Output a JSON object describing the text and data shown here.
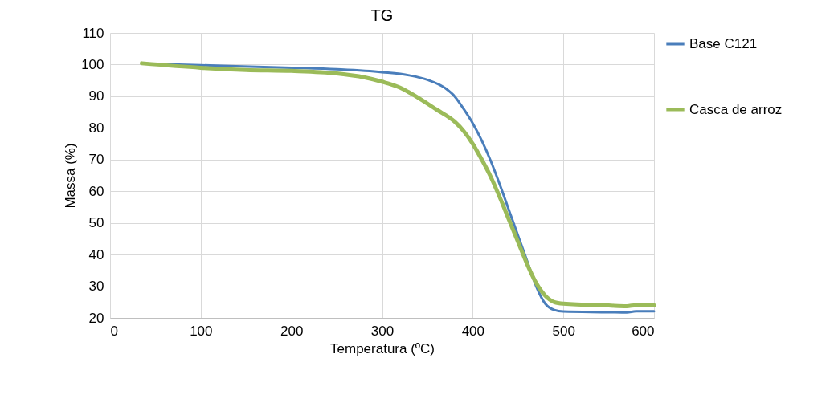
{
  "chart_data": {
    "type": "line",
    "title": "TG",
    "xlabel": "Temperatura (ºC)",
    "ylabel": "Massa (%)",
    "xlim": [
      0,
      600
    ],
    "xticks": [
      0,
      100,
      200,
      300,
      400,
      500,
      600
    ],
    "ylim": [
      20,
      110
    ],
    "yticks": [
      20,
      30,
      40,
      50,
      60,
      70,
      80,
      90,
      100,
      110
    ],
    "grid": true,
    "legend": "right",
    "line_style": "solid",
    "marker": "none",
    "series": [
      {
        "name": "Base C121",
        "color": "#4a7ebb",
        "x": [
          35,
          100,
          200,
          250,
          300,
          330,
          350,
          370,
          380,
          390,
          400,
          410,
          420,
          430,
          440,
          450,
          460,
          470,
          480,
          490,
          500,
          550,
          570,
          580,
          600
        ],
        "values": [
          100.3,
          99.8,
          99,
          98.5,
          97.6,
          96.6,
          95.2,
          92.5,
          90,
          86,
          81.5,
          76,
          69.5,
          62,
          54,
          46,
          38,
          30,
          24.5,
          22.5,
          22,
          21.8,
          21.7,
          22.1,
          22.1
        ]
      },
      {
        "name": "Casca de arroz",
        "color": "#9bbb59",
        "x": [
          35,
          100,
          150,
          200,
          250,
          280,
          300,
          320,
          340,
          360,
          380,
          390,
          400,
          410,
          420,
          430,
          440,
          450,
          460,
          470,
          480,
          490,
          500,
          550,
          570,
          580,
          600
        ],
        "values": [
          100.4,
          99,
          98.3,
          98,
          97.2,
          96,
          94.6,
          92.7,
          89.5,
          85.8,
          82,
          79,
          75,
          70,
          64.5,
          58,
          51,
          44,
          37,
          31,
          27,
          25,
          24.5,
          23.9,
          23.7,
          24,
          24
        ]
      }
    ]
  }
}
